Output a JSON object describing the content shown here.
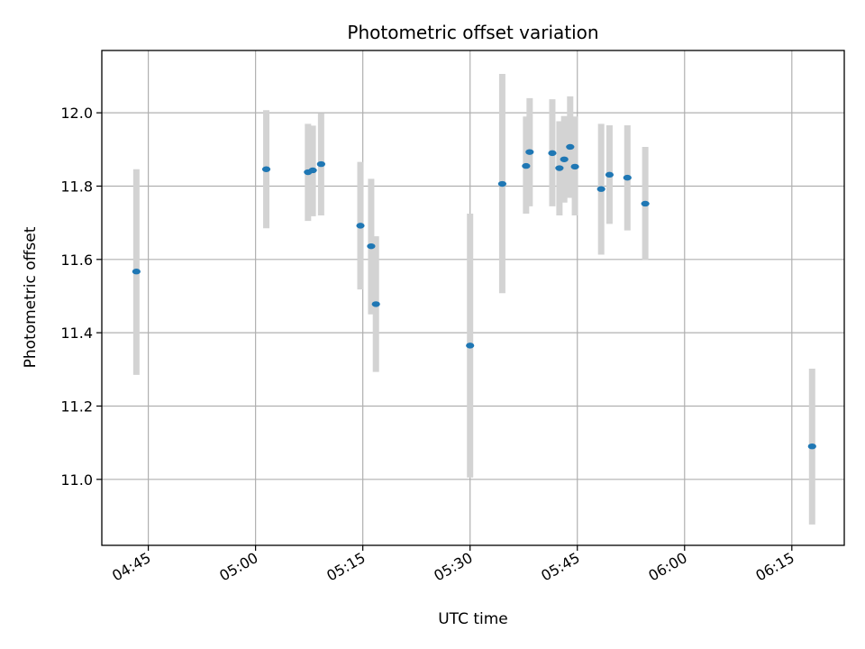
{
  "chart_data": {
    "type": "scatter",
    "title": "Photometric offset variation",
    "xlabel": "UTC time",
    "ylabel": "Photometric offset",
    "xlim": [
      "04:38:30",
      "06:22:20"
    ],
    "ylim": [
      10.82,
      12.17
    ],
    "x_ticks": [
      "04:45",
      "05:00",
      "05:15",
      "05:30",
      "05:45",
      "06:00",
      "06:15"
    ],
    "y_ticks": [
      "11.0",
      "11.2",
      "11.4",
      "11.6",
      "11.8",
      "12.0"
    ],
    "grid": true,
    "colors": {
      "marker": "#1f77b4",
      "error_bar": "#d3d3d3"
    },
    "points": [
      {
        "t": "04:43:20",
        "y": 11.567,
        "yerr_low": 11.285,
        "yerr_high": 11.846
      },
      {
        "t": "05:01:30",
        "y": 11.846,
        "yerr_low": 11.685,
        "yerr_high": 12.007
      },
      {
        "t": "05:07:20",
        "y": 11.838,
        "yerr_low": 11.705,
        "yerr_high": 11.97
      },
      {
        "t": "05:08:00",
        "y": 11.843,
        "yerr_low": 11.718,
        "yerr_high": 11.965
      },
      {
        "t": "05:09:10",
        "y": 11.86,
        "yerr_low": 11.72,
        "yerr_high": 11.998
      },
      {
        "t": "05:14:40",
        "y": 11.692,
        "yerr_low": 11.518,
        "yerr_high": 11.866
      },
      {
        "t": "05:16:10",
        "y": 11.636,
        "yerr_low": 11.45,
        "yerr_high": 11.82
      },
      {
        "t": "05:16:50",
        "y": 11.478,
        "yerr_low": 11.293,
        "yerr_high": 11.663
      },
      {
        "t": "05:30:00",
        "y": 11.365,
        "yerr_low": 11.005,
        "yerr_high": 11.725
      },
      {
        "t": "05:34:30",
        "y": 11.806,
        "yerr_low": 11.508,
        "yerr_high": 12.106
      },
      {
        "t": "05:37:50",
        "y": 11.855,
        "yerr_low": 11.725,
        "yerr_high": 11.99
      },
      {
        "t": "05:38:20",
        "y": 11.893,
        "yerr_low": 11.745,
        "yerr_high": 12.04
      },
      {
        "t": "05:41:30",
        "y": 11.89,
        "yerr_low": 11.745,
        "yerr_high": 12.037
      },
      {
        "t": "05:42:30",
        "y": 11.849,
        "yerr_low": 11.72,
        "yerr_high": 11.977
      },
      {
        "t": "05:43:10",
        "y": 11.873,
        "yerr_low": 11.755,
        "yerr_high": 11.991
      },
      {
        "t": "05:44:00",
        "y": 11.907,
        "yerr_low": 11.768,
        "yerr_high": 12.045
      },
      {
        "t": "05:44:40",
        "y": 11.853,
        "yerr_low": 11.72,
        "yerr_high": 11.99
      },
      {
        "t": "05:48:20",
        "y": 11.792,
        "yerr_low": 11.613,
        "yerr_high": 11.97
      },
      {
        "t": "05:49:30",
        "y": 11.831,
        "yerr_low": 11.697,
        "yerr_high": 11.966
      },
      {
        "t": "05:52:00",
        "y": 11.823,
        "yerr_low": 11.679,
        "yerr_high": 11.966
      },
      {
        "t": "05:54:30",
        "y": 11.752,
        "yerr_low": 11.598,
        "yerr_high": 11.907
      },
      {
        "t": "06:17:50",
        "y": 11.09,
        "yerr_low": 10.877,
        "yerr_high": 11.302
      }
    ]
  }
}
